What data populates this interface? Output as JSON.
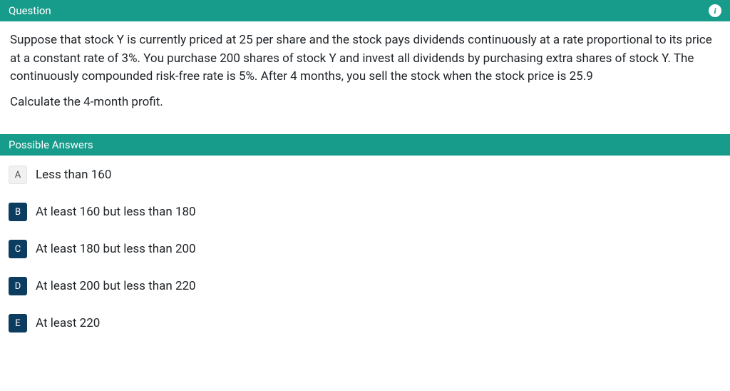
{
  "question": {
    "header_label": "Question",
    "paragraph1": "Suppose that stock Y is currently priced at 25 per share and the stock pays dividends continuously at a rate proportional to its price at a constant rate of 3%. You purchase 200 shares of stock Y and invest all dividends by purchasing extra shares of stock Y. The continuously compounded risk-free rate is 5%. After 4 months, you sell the stock when the stock price is 25.9",
    "paragraph2": "Calculate the 4-month profit."
  },
  "answers": {
    "header_label": "Possible Answers",
    "options": [
      {
        "letter": "A",
        "text": "Less than 160",
        "selected": false
      },
      {
        "letter": "B",
        "text": "At least 160 but less than 180",
        "selected": true
      },
      {
        "letter": "C",
        "text": "At least 180 but less than 200",
        "selected": true
      },
      {
        "letter": "D",
        "text": "At least 200 but less than 220",
        "selected": true
      },
      {
        "letter": "E",
        "text": "At least 220",
        "selected": true
      }
    ]
  },
  "colors": {
    "header_bg": "#179b8b",
    "selected_bg": "#0c3c60",
    "unselected_bg": "#f1f1f1"
  }
}
